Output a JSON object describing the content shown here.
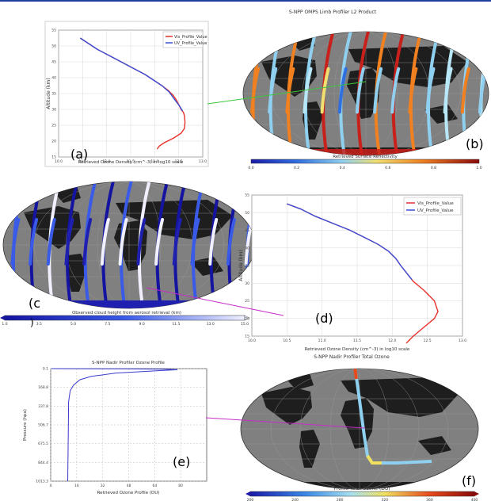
{
  "colors": {
    "red_series": "#e8302a",
    "blue_series": "#3a4fd8",
    "connector_green": "#3cc63c",
    "connector_magenta": "#c82cc8",
    "map_ocean": "#808080",
    "map_land": "#1e1e1e"
  },
  "panels": {
    "a": {
      "letter": "(a)",
      "xlabel": "Retrieved Ozone Density (cm^-3) in log10 scale",
      "ylabel": "Altitude (km)",
      "xticks": [
        "10.0",
        "10.5",
        "11.0",
        "11.5",
        "12.0",
        "12.5",
        "13.0"
      ],
      "yticks": [
        "15",
        "20",
        "25",
        "30",
        "35",
        "40",
        "45",
        "50",
        "55"
      ],
      "legend": [
        "Vis_Profile_Value",
        "UV_Profile_Value"
      ]
    },
    "b": {
      "letter": "(b)",
      "title": "S-NPP OMPS Limb Profiler L2 Product",
      "colorbar_label": "Retrieved Surface Reflectivity",
      "colorbar_ticks": [
        "0.0",
        "0.2",
        "0.4",
        "0.6",
        "0.8",
        "1.0"
      ]
    },
    "c": {
      "letter": "(c",
      "letter2": ")",
      "colorbar_label": "Observed cloud height from aerosol retrieval (km)",
      "colorbar_ticks": [
        "1.0",
        "3.5",
        "5.0",
        "7.5",
        "9.0",
        "11.5",
        "13.0",
        "15.0"
      ]
    },
    "d": {
      "letter": "(d)",
      "xlabel": "Retrieved Ozone Density (cm^-3) in log10 scale",
      "ylabel": "Altitude (km)",
      "xticks": [
        "10.0",
        "10.5",
        "11.0",
        "11.5",
        "12.0",
        "12.5",
        "13.0"
      ],
      "yticks": [
        "15",
        "20",
        "25",
        "30",
        "35",
        "40",
        "45",
        "50",
        "55"
      ],
      "legend": [
        "Vis_Profile_Value",
        "UV_Profile_Value"
      ]
    },
    "e": {
      "letter": "(e)",
      "title": "S-NPP Nadir Profiler Ozone Profile",
      "xlabel": "Retrieved Ozone Profile (DU)",
      "ylabel": "Pressure (hpa)",
      "xticks": [
        "0",
        "16",
        "32",
        "48",
        "64",
        "80"
      ],
      "yticks": [
        "0.1",
        "168.8",
        "337.8",
        "506.7",
        "675.5",
        "844.4",
        "1013.3"
      ]
    },
    "f": {
      "letter": "(f)",
      "title": "S-NPP Nadir Profiler Total Ozone",
      "colorbar_label": "Profile Total Ozone (DU)",
      "colorbar_ticks": [
        "200",
        "240",
        "280",
        "320",
        "360",
        "400"
      ]
    }
  },
  "chart_data": [
    {
      "type": "line",
      "panel": "a",
      "xlabel": "Retrieved Ozone Density (cm^-3) in log10 scale",
      "ylabel": "Altitude (km)",
      "xlim": [
        10.0,
        13.0
      ],
      "ylim": [
        15,
        55
      ],
      "series": [
        {
          "name": "Vis_Profile_Value",
          "color": "#e8302a",
          "x": [
            10.45,
            10.6,
            10.8,
            11.05,
            11.3,
            11.55,
            11.8,
            12.0,
            12.15,
            12.28,
            12.38,
            12.45,
            12.5,
            12.55,
            12.6,
            12.62,
            12.63,
            12.62,
            12.55,
            12.4,
            12.2,
            12.1,
            12.05
          ],
          "y": [
            52.5,
            51,
            49,
            47,
            45,
            43,
            41,
            39,
            37.5,
            36,
            34.5,
            33,
            31.5,
            30,
            29,
            28,
            26,
            24,
            22.5,
            21,
            19.5,
            18.5,
            17.5
          ]
        },
        {
          "name": "UV_Profile_Value",
          "color": "#3a4fd8",
          "x": [
            10.45,
            10.6,
            10.8,
            11.05,
            11.3,
            11.55,
            11.8,
            12.0,
            12.15,
            12.3,
            12.42,
            12.52,
            12.58
          ],
          "y": [
            52.5,
            51,
            49,
            47,
            45,
            43,
            41,
            39,
            37.5,
            35.5,
            33,
            31,
            29.5
          ]
        }
      ]
    },
    {
      "type": "line",
      "panel": "d",
      "xlabel": "Retrieved Ozone Density (cm^-3) in log10 scale",
      "ylabel": "Altitude (km)",
      "xlim": [
        10.0,
        13.0
      ],
      "ylim": [
        15,
        55
      ],
      "series": [
        {
          "name": "Vis_Profile_Value",
          "color": "#e8302a",
          "x": [
            10.5,
            10.7,
            10.9,
            11.15,
            11.4,
            11.6,
            11.8,
            11.95,
            12.05,
            12.12,
            12.2,
            12.3,
            12.45,
            12.6,
            12.65,
            12.6,
            12.45,
            12.3,
            12.2
          ],
          "y": [
            52.5,
            51,
            49,
            47,
            45,
            43,
            41,
            39,
            37,
            35,
            33,
            30.5,
            28,
            25,
            22,
            20,
            17.5,
            15,
            13
          ]
        },
        {
          "name": "UV_Profile_Value",
          "color": "#3a4fd8",
          "x": [
            10.5,
            10.7,
            10.9,
            11.15,
            11.4,
            11.6,
            11.8,
            11.95,
            12.05,
            12.12,
            12.2,
            12.28
          ],
          "y": [
            52.5,
            51,
            49,
            47,
            45,
            43,
            41,
            39,
            37,
            35,
            33,
            31
          ]
        }
      ]
    },
    {
      "type": "line",
      "panel": "e",
      "xlabel": "Retrieved Ozone Profile (DU)",
      "ylabel": "Pressure (hpa)",
      "xlim": [
        0,
        96
      ],
      "ylim": [
        1013.3,
        0.1
      ],
      "series": [
        {
          "name": "",
          "color": "#3a3ad0",
          "x": [
            0.5,
            45,
            70,
            78,
            65,
            40,
            25,
            18,
            14,
            12,
            11,
            10.8,
            10.5
          ],
          "y": [
            0.1,
            2,
            5,
            10,
            20,
            40,
            70,
            100,
            150,
            200,
            300,
            600,
            1013.3
          ]
        }
      ]
    }
  ]
}
